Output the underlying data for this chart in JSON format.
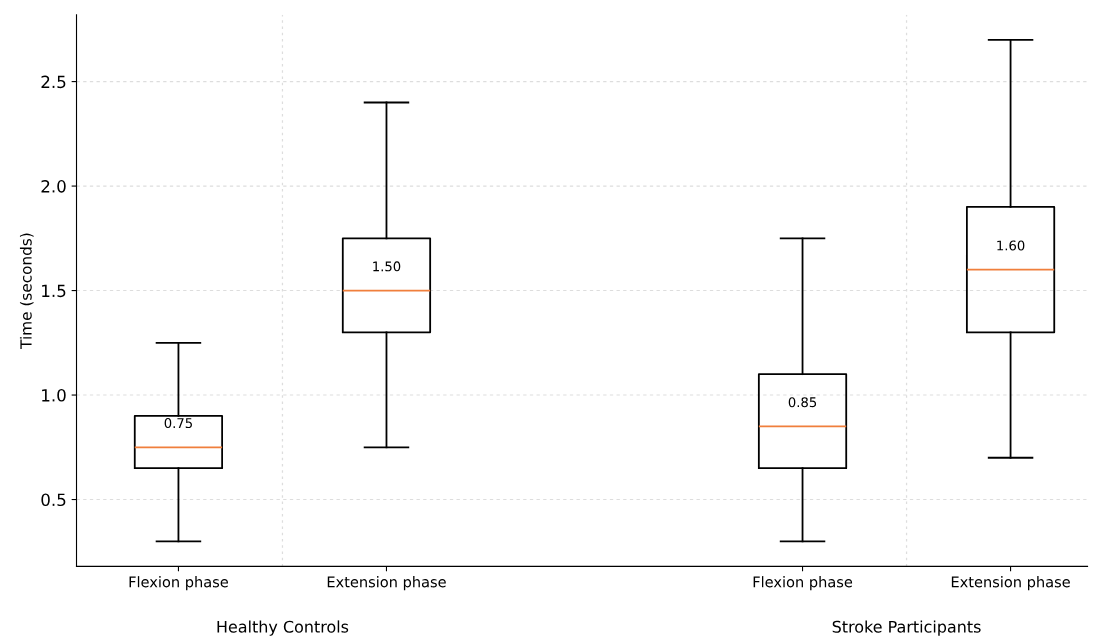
{
  "chart_data": {
    "type": "box",
    "ylabel": "Time (seconds)",
    "categories": [
      "Flexion phase",
      "Extension phase",
      null,
      "Flexion phase",
      "Extension phase"
    ],
    "boxes": [
      {
        "low": 0.3,
        "q1": 0.65,
        "median": 0.75,
        "q3": 0.9,
        "high": 1.25
      },
      {
        "low": 0.75,
        "q1": 1.3,
        "median": 1.5,
        "q3": 1.75,
        "high": 2.4
      },
      null,
      {
        "low": 0.3,
        "q1": 0.65,
        "median": 0.85,
        "q3": 1.1,
        "high": 1.75
      },
      {
        "low": 0.7,
        "q1": 1.3,
        "median": 1.6,
        "q3": 1.9,
        "high": 2.7
      }
    ],
    "value_labels": [
      "0.75",
      "1.50",
      null,
      "0.85",
      "1.60"
    ],
    "color": "#000000",
    "ylim": [
      0.18,
      2.82
    ],
    "yticks": [
      0.5,
      {
        "value": 1,
        "label": "1.0"
      },
      1.5,
      {
        "value": 2,
        "label": "2.0"
      },
      2.5
    ],
    "grid": "y",
    "annotations": [
      "Healthy Controls",
      "Stroke Participants"
    ]
  }
}
